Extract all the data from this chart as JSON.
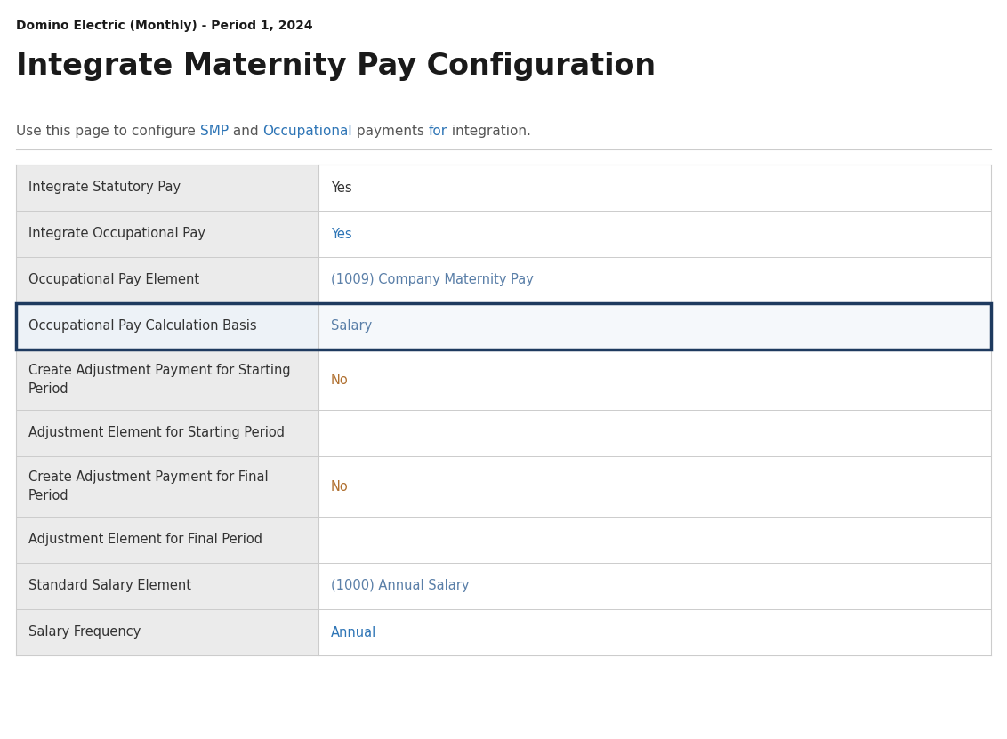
{
  "page_subtitle": "Domino Electric (Monthly) - Period 1, 2024",
  "title": "Integrate Maternity Pay Configuration",
  "description_parts": [
    {
      "text": "Use this page to configure ",
      "color": "#555555"
    },
    {
      "text": "SMP",
      "color": "#2e75b6"
    },
    {
      "text": " and ",
      "color": "#555555"
    },
    {
      "text": "Occupational",
      "color": "#2e75b6"
    },
    {
      "text": " payments ",
      "color": "#555555"
    },
    {
      "text": "for",
      "color": "#2e75b6"
    },
    {
      "text": " integration.",
      "color": "#555555"
    }
  ],
  "rows": [
    {
      "label": "Integrate Statutory Pay",
      "value": "Yes",
      "value_color": "#333333",
      "label_bg": "#ebebeb",
      "value_bg": "#ffffff",
      "highlighted": false,
      "tall": false
    },
    {
      "label": "Integrate Occupational Pay",
      "value": "Yes",
      "value_color": "#2e75b6",
      "label_bg": "#ebebeb",
      "value_bg": "#ffffff",
      "highlighted": false,
      "tall": false
    },
    {
      "label": "Occupational Pay Element",
      "value": "(1009) Company Maternity Pay",
      "value_color": "#5a7fa8",
      "label_bg": "#ebebeb",
      "value_bg": "#ffffff",
      "highlighted": false,
      "tall": false
    },
    {
      "label": "Occupational Pay Calculation Basis",
      "value": "Salary",
      "value_color": "#5a7fa8",
      "label_bg": "#edf2f7",
      "value_bg": "#f5f8fb",
      "highlighted": true,
      "tall": false
    },
    {
      "label": "Create Adjustment Payment for Starting\nPeriod",
      "value": "No",
      "value_color": "#b07030",
      "label_bg": "#ebebeb",
      "value_bg": "#ffffff",
      "highlighted": false,
      "tall": true
    },
    {
      "label": "Adjustment Element for Starting Period",
      "value": "",
      "value_color": "#333333",
      "label_bg": "#ebebeb",
      "value_bg": "#ffffff",
      "highlighted": false,
      "tall": false
    },
    {
      "label": "Create Adjustment Payment for Final\nPeriod",
      "value": "No",
      "value_color": "#b07030",
      "label_bg": "#ebebeb",
      "value_bg": "#ffffff",
      "highlighted": false,
      "tall": true
    },
    {
      "label": "Adjustment Element for Final Period",
      "value": "",
      "value_color": "#333333",
      "label_bg": "#ebebeb",
      "value_bg": "#ffffff",
      "highlighted": false,
      "tall": false
    },
    {
      "label": "Standard Salary Element",
      "value": "(1000) Annual Salary",
      "value_color": "#5a7fa8",
      "label_bg": "#ebebeb",
      "value_bg": "#ffffff",
      "highlighted": false,
      "tall": false
    },
    {
      "label": "Salary Frequency",
      "value": "Annual",
      "value_color": "#2e75b6",
      "label_bg": "#ebebeb",
      "value_bg": "#ffffff",
      "highlighted": false,
      "tall": false
    }
  ],
  "bg_color": "#ffffff",
  "border_color": "#cccccc",
  "highlight_border_color": "#1e3a5f",
  "subtitle_color": "#1a1a1a",
  "title_color": "#1a1a1a",
  "label_text_color": "#333333"
}
